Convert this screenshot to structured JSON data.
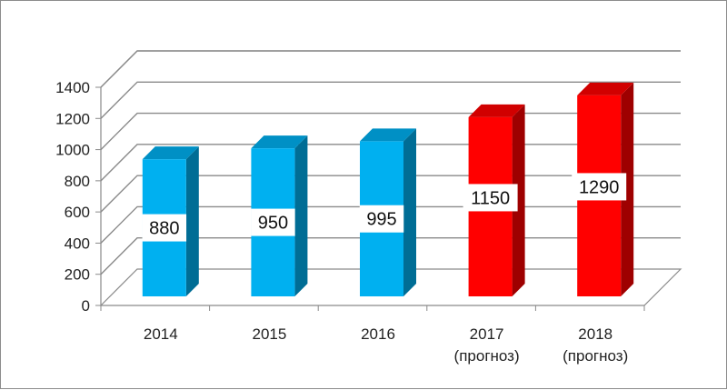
{
  "chart_data": {
    "type": "bar",
    "categories": [
      [
        "2014"
      ],
      [
        "2015"
      ],
      [
        "2016"
      ],
      [
        "2017",
        "(прогноз)"
      ],
      [
        "2018",
        "(прогноз)"
      ]
    ],
    "values": [
      880,
      950,
      995,
      1150,
      1290
    ],
    "data_labels": [
      "880",
      "950",
      "995",
      "1150",
      "1290"
    ],
    "bar_colors": [
      "#00b0f0",
      "#00b0f0",
      "#00b0f0",
      "#ff0000",
      "#ff0000"
    ],
    "ylim": [
      0,
      1400
    ],
    "yticks": [
      0,
      200,
      400,
      600,
      800,
      1000,
      1200,
      1400
    ],
    "grid": true,
    "three_d": true,
    "title": "",
    "xlabel": "",
    "ylabel": ""
  }
}
